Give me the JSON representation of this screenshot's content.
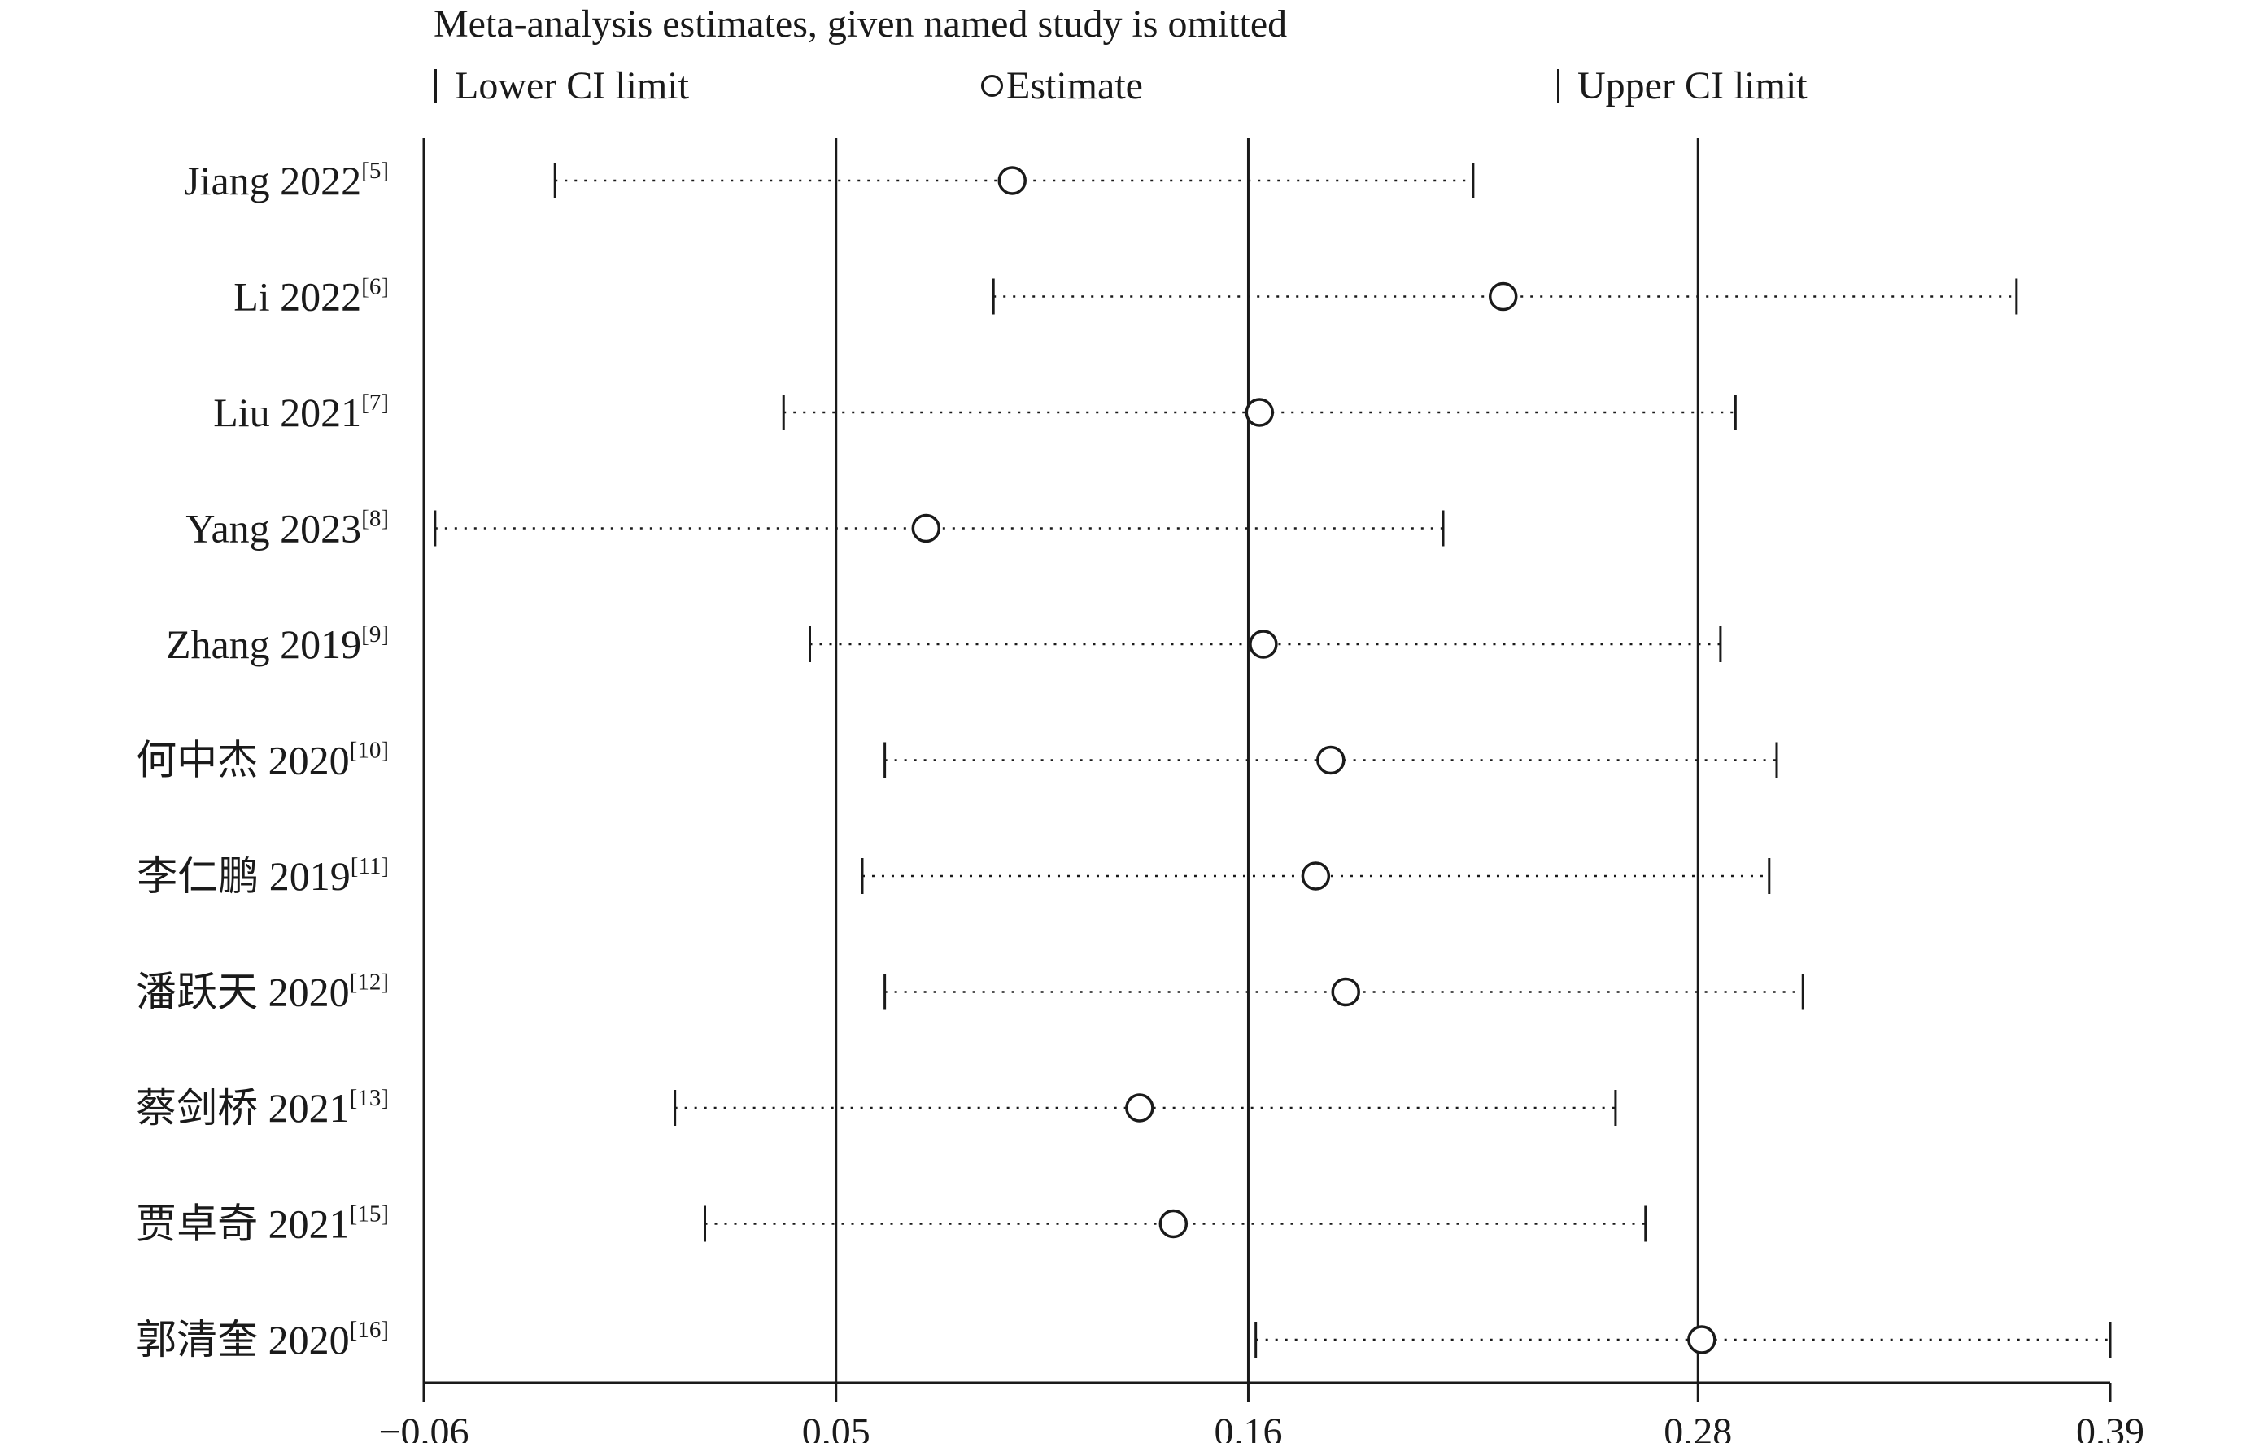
{
  "chart_data": {
    "type": "forest",
    "title": "Meta-analysis estimates, given named study is omitted",
    "legend": {
      "lower": "Lower CI limit",
      "estimate": "Estimate",
      "upper": "Upper CI limit"
    },
    "xticks": [
      -0.06,
      0.05,
      0.16,
      0.28,
      0.39
    ],
    "xtick_labels": [
      "−0.06",
      "0.05",
      "0.16",
      "0.28",
      "0.39"
    ],
    "xlim": [
      -0.06,
      0.39
    ],
    "reference_lines": [
      0.05,
      0.16,
      0.28
    ],
    "studies": [
      {
        "label": "Jiang 2022",
        "ref": "[5]",
        "lower": -0.025,
        "estimate": 0.097,
        "upper": 0.22
      },
      {
        "label": "Li 2022",
        "ref": "[6]",
        "lower": 0.092,
        "estimate": 0.228,
        "upper": 0.365
      },
      {
        "label": "Liu 2021",
        "ref": "[7]",
        "lower": 0.036,
        "estimate": 0.163,
        "upper": 0.29
      },
      {
        "label": "Yang 2023",
        "ref": "[8]",
        "lower": -0.057,
        "estimate": 0.074,
        "upper": 0.212
      },
      {
        "label": "Zhang 2019",
        "ref": "[9]",
        "lower": 0.043,
        "estimate": 0.164,
        "upper": 0.286
      },
      {
        "label": "何中杰 2020",
        "ref": "[10]",
        "lower": 0.063,
        "estimate": 0.182,
        "upper": 0.301
      },
      {
        "label": "李仁鹏 2019",
        "ref": "[11]",
        "lower": 0.057,
        "estimate": 0.178,
        "upper": 0.299
      },
      {
        "label": "潘跃天 2020",
        "ref": "[12]",
        "lower": 0.063,
        "estimate": 0.186,
        "upper": 0.308
      },
      {
        "label": "蔡剑桥 2021",
        "ref": "[13]",
        "lower": 0.007,
        "estimate": 0.131,
        "upper": 0.258
      },
      {
        "label": "贾卓奇 2021",
        "ref": "[15]",
        "lower": 0.015,
        "estimate": 0.14,
        "upper": 0.266
      },
      {
        "label": "郭清奎 2020",
        "ref": "[16]",
        "lower": 0.162,
        "estimate": 0.281,
        "upper": 0.39
      }
    ],
    "grid": false
  }
}
